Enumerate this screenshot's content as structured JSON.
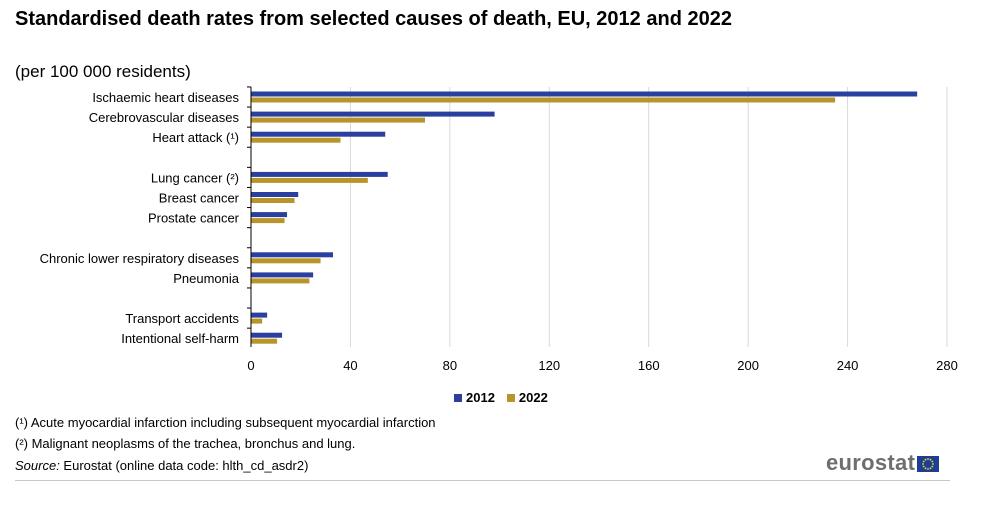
{
  "header": {
    "title": "Standardised death rates from selected causes of death, EU, 2012 and 2022",
    "subtitle": "(per 100 000 residents)"
  },
  "chart_data": {
    "type": "bar",
    "orientation": "horizontal",
    "title": "Standardised death rates from selected causes of death, EU, 2012 and 2022",
    "subtitle": "(per 100 000 residents)",
    "categories": [
      "Ischaemic heart diseases",
      "Cerebrovascular diseases",
      "Heart attack (¹)",
      "",
      "Lung cancer (²)",
      "Breast cancer",
      "Prostate cancer",
      "",
      "Chronic lower respiratory diseases",
      "Pneumonia",
      "",
      "Transport accidents",
      "Intentional self-harm"
    ],
    "series": [
      {
        "name": "2012",
        "color": "#2b3f9e",
        "values": [
          268,
          98,
          54,
          null,
          55,
          19,
          14.5,
          null,
          33,
          25,
          null,
          6.5,
          12.5
        ]
      },
      {
        "name": "2022",
        "color": "#b8952b",
        "values": [
          235,
          70,
          36,
          null,
          47,
          17.5,
          13.5,
          null,
          28,
          23.5,
          null,
          4.5,
          10.5
        ]
      }
    ],
    "xlim": [
      0,
      280
    ],
    "xticks": [
      "0",
      "40",
      "80",
      "120",
      "160",
      "200",
      "240",
      "280"
    ],
    "grid": true,
    "legend_position": "bottom"
  },
  "legend": [
    {
      "label": "2012",
      "color": "#2b3f9e"
    },
    {
      "label": "2022",
      "color": "#b8952b"
    }
  ],
  "footnotes": {
    "note1": "(¹) Acute myocardial infarction including subsequent myocardial infarction",
    "note2": "(²) Malignant neoplasms of the trachea, bronchus and lung.",
    "source_label": "Source:",
    "source_text": " Eurostat (online data code: hlth_cd_asdr2)"
  },
  "logo": {
    "text": "eurostat",
    "icon": "eu-flag-icon"
  }
}
